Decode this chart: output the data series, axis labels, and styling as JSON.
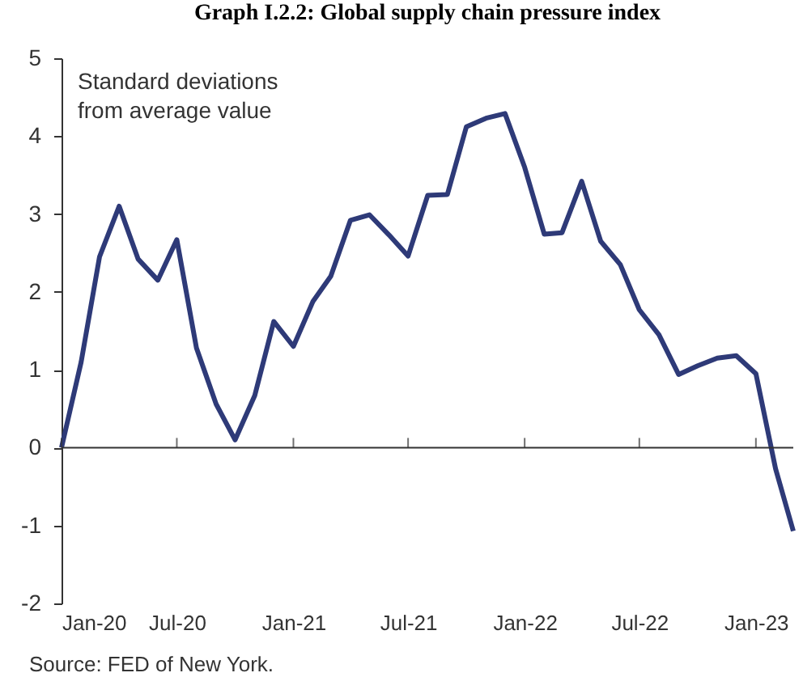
{
  "chart_data": {
    "type": "line",
    "title": "Graph I.2.2: Global supply chain pressure index",
    "ylabel": "Standard deviations from average value",
    "x": [
      "2020-01",
      "2020-02",
      "2020-03",
      "2020-04",
      "2020-05",
      "2020-06",
      "2020-07",
      "2020-08",
      "2020-09",
      "2020-10",
      "2020-11",
      "2020-12",
      "2021-01",
      "2021-02",
      "2021-03",
      "2021-04",
      "2021-05",
      "2021-06",
      "2021-07",
      "2021-08",
      "2021-09",
      "2021-10",
      "2021-11",
      "2021-12",
      "2022-01",
      "2022-02",
      "2022-03",
      "2022-04",
      "2022-05",
      "2022-06",
      "2022-07",
      "2022-08",
      "2022-09",
      "2022-10",
      "2022-11",
      "2022-12",
      "2023-01",
      "2023-02",
      "2023-03"
    ],
    "series": [
      {
        "color": "#2e3a78",
        "values": [
          0,
          1.1,
          2.45,
          3.1,
          2.42,
          2.15,
          2.67,
          1.28,
          0.56,
          0.1,
          0.67,
          1.62,
          1.3,
          1.88,
          2.2,
          2.92,
          2.99,
          2.73,
          2.46,
          3.24,
          3.25,
          4.12,
          4.23,
          4.29,
          3.6,
          2.74,
          2.76,
          3.42,
          2.65,
          2.35,
          1.77,
          1.45,
          0.94,
          1.05,
          1.15,
          1.18,
          0.95,
          -0.27,
          -1.07
        ]
      }
    ],
    "xlim": [
      "2020-01",
      "2023-03"
    ],
    "xticks": [
      {
        "value": "2020-01",
        "label": "Jan-20"
      },
      {
        "value": "2020-07",
        "label": "Jul-20"
      },
      {
        "value": "2021-01",
        "label": "Jan-21"
      },
      {
        "value": "2021-07",
        "label": "Jul-21"
      },
      {
        "value": "2022-01",
        "label": "Jan-22"
      },
      {
        "value": "2022-07",
        "label": "Jul-22"
      },
      {
        "value": "2023-01",
        "label": "Jan-23"
      }
    ],
    "ylim": [
      -2,
      5
    ],
    "yticks": [
      -2,
      -1,
      0,
      1,
      2,
      3,
      4,
      5
    ],
    "ref_lines": [
      {
        "axis": "y",
        "value": 0
      }
    ],
    "grid": false,
    "line_style": "solid",
    "marker": "none",
    "annotations": [
      "Source: FED of New York."
    ]
  }
}
